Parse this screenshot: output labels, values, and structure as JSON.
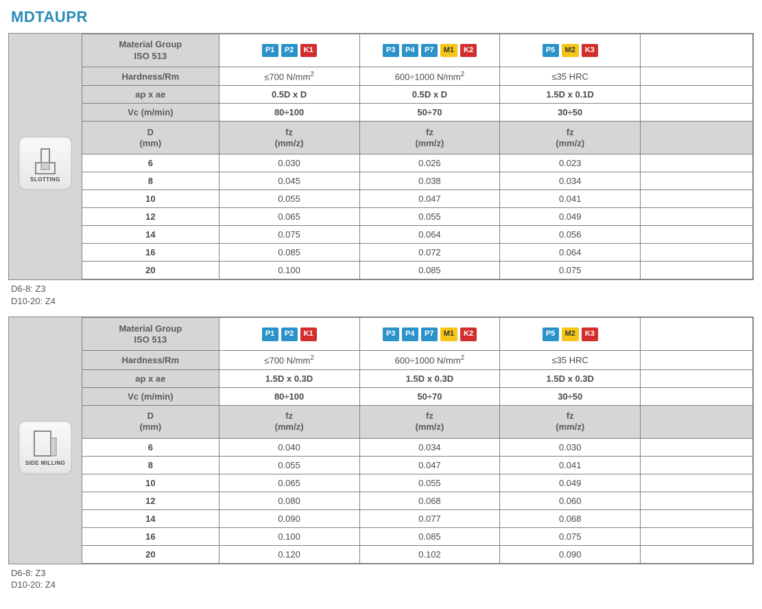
{
  "title": "MDTAUPR",
  "chip_colors": {
    "P": "#2a92c8",
    "M": "#f5c518",
    "K": "#d22e2e"
  },
  "row_labels": {
    "material_group": "Material Group\nISO 513",
    "hardness": "Hardness/Rm",
    "ap_ae": "ap x ae",
    "vc": "Vc (m/min)",
    "d": "D\n(mm)",
    "fz": "fz\n(mm/z)"
  },
  "sections": [
    {
      "badge": {
        "label": "SLOTTING",
        "icon": "slotting"
      },
      "groups": [
        {
          "chips": [
            {
              "t": "P1",
              "c": "P"
            },
            {
              "t": "P2",
              "c": "P"
            },
            {
              "t": "K1",
              "c": "K"
            }
          ],
          "hardness": "≤700 N/mm²",
          "ap_ae": "0.5D x D",
          "vc": "80÷100"
        },
        {
          "chips": [
            {
              "t": "P3",
              "c": "P"
            },
            {
              "t": "P4",
              "c": "P"
            },
            {
              "t": "P7",
              "c": "P"
            },
            {
              "t": "M1",
              "c": "M"
            },
            {
              "t": "K2",
              "c": "K"
            }
          ],
          "hardness": "600÷1000 N/mm²",
          "ap_ae": "0.5D x D",
          "vc": "50÷70"
        },
        {
          "chips": [
            {
              "t": "P5",
              "c": "P"
            },
            {
              "t": "M2",
              "c": "M"
            },
            {
              "t": "K3",
              "c": "K"
            }
          ],
          "hardness": "≤35 HRC",
          "ap_ae": "1.5D x 0.1D",
          "vc": "30÷50"
        }
      ],
      "rows": [
        {
          "d": "6",
          "fz": [
            "0.030",
            "0.026",
            "0.023"
          ]
        },
        {
          "d": "8",
          "fz": [
            "0.045",
            "0.038",
            "0.034"
          ]
        },
        {
          "d": "10",
          "fz": [
            "0.055",
            "0.047",
            "0.041"
          ]
        },
        {
          "d": "12",
          "fz": [
            "0.065",
            "0.055",
            "0.049"
          ]
        },
        {
          "d": "14",
          "fz": [
            "0.075",
            "0.064",
            "0.056"
          ]
        },
        {
          "d": "16",
          "fz": [
            "0.085",
            "0.072",
            "0.064"
          ]
        },
        {
          "d": "20",
          "fz": [
            "0.100",
            "0.085",
            "0.075"
          ]
        }
      ],
      "footer": "D6-8: Z3\nD10-20: Z4"
    },
    {
      "badge": {
        "label": "SIDE MILLING",
        "icon": "side-milling"
      },
      "groups": [
        {
          "chips": [
            {
              "t": "P1",
              "c": "P"
            },
            {
              "t": "P2",
              "c": "P"
            },
            {
              "t": "K1",
              "c": "K"
            }
          ],
          "hardness": "≤700 N/mm²",
          "ap_ae": "1.5D x 0.3D",
          "vc": "80÷100"
        },
        {
          "chips": [
            {
              "t": "P3",
              "c": "P"
            },
            {
              "t": "P4",
              "c": "P"
            },
            {
              "t": "P7",
              "c": "P"
            },
            {
              "t": "M1",
              "c": "M"
            },
            {
              "t": "K2",
              "c": "K"
            }
          ],
          "hardness": "600÷1000 N/mm²",
          "ap_ae": "1.5D x 0.3D",
          "vc": "50÷70"
        },
        {
          "chips": [
            {
              "t": "P5",
              "c": "P"
            },
            {
              "t": "M2",
              "c": "M"
            },
            {
              "t": "K3",
              "c": "K"
            }
          ],
          "hardness": "≤35 HRC",
          "ap_ae": "1.5D x 0.3D",
          "vc": "30÷50"
        }
      ],
      "rows": [
        {
          "d": "6",
          "fz": [
            "0.040",
            "0.034",
            "0.030"
          ]
        },
        {
          "d": "8",
          "fz": [
            "0.055",
            "0.047",
            "0.041"
          ]
        },
        {
          "d": "10",
          "fz": [
            "0.065",
            "0.055",
            "0.049"
          ]
        },
        {
          "d": "12",
          "fz": [
            "0.080",
            "0.068",
            "0.060"
          ]
        },
        {
          "d": "14",
          "fz": [
            "0.090",
            "0.077",
            "0.068"
          ]
        },
        {
          "d": "16",
          "fz": [
            "0.100",
            "0.085",
            "0.075"
          ]
        },
        {
          "d": "20",
          "fz": [
            "0.120",
            "0.102",
            "0.090"
          ]
        }
      ],
      "footer": "D6-8: Z3\nD10-20: Z4"
    }
  ]
}
